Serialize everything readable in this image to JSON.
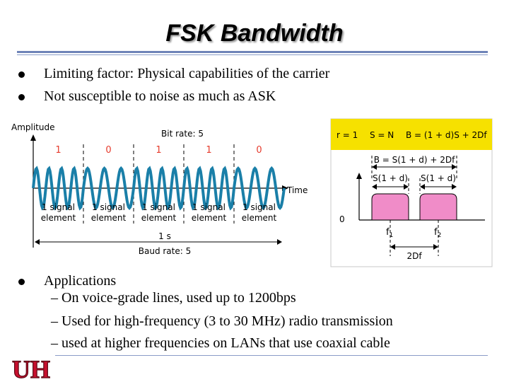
{
  "slide": {
    "title": "FSK Bandwidth",
    "bullets_top": [
      "Limiting factor: Physical capabilities of the carrier",
      "Not susceptible to noise as much as ASK"
    ],
    "applications": {
      "heading": "Applications",
      "items": [
        "– On voice-grade lines, used up to 1200bps",
        "– Used for high-frequency (3 to 30 MHz) radio transmission",
        "– used at higher frequencies on LANs that use coaxial cable"
      ]
    },
    "logo_text": "UH"
  },
  "figure": {
    "left": {
      "amplitude_label": "Amplitude",
      "bit_rate_label": "Bit rate: 5",
      "bits": [
        "1",
        "0",
        "1",
        "1",
        "0"
      ],
      "time_label": "Time",
      "signal_element": [
        "1 signal",
        "element"
      ],
      "duration_label": "1 s",
      "baud_rate_label": "Baud rate: 5"
    },
    "right": {
      "header": [
        "r = 1",
        "S = N",
        "B = (1 + d)S + 2Df"
      ],
      "bandwidth_label": "B = S(1 + d) + 2Df",
      "sub_band_label": "S(1 + d)",
      "zero_label": "0",
      "f1": "f",
      "f1_sub": "1",
      "f2": "f",
      "f2_sub": "2",
      "delta_label": "2Df"
    },
    "colors": {
      "carrier": "#1a7fa8",
      "header_bg": "#f6e100",
      "band_fill": "#f08cc8",
      "label_red": "#e63c2e"
    }
  }
}
